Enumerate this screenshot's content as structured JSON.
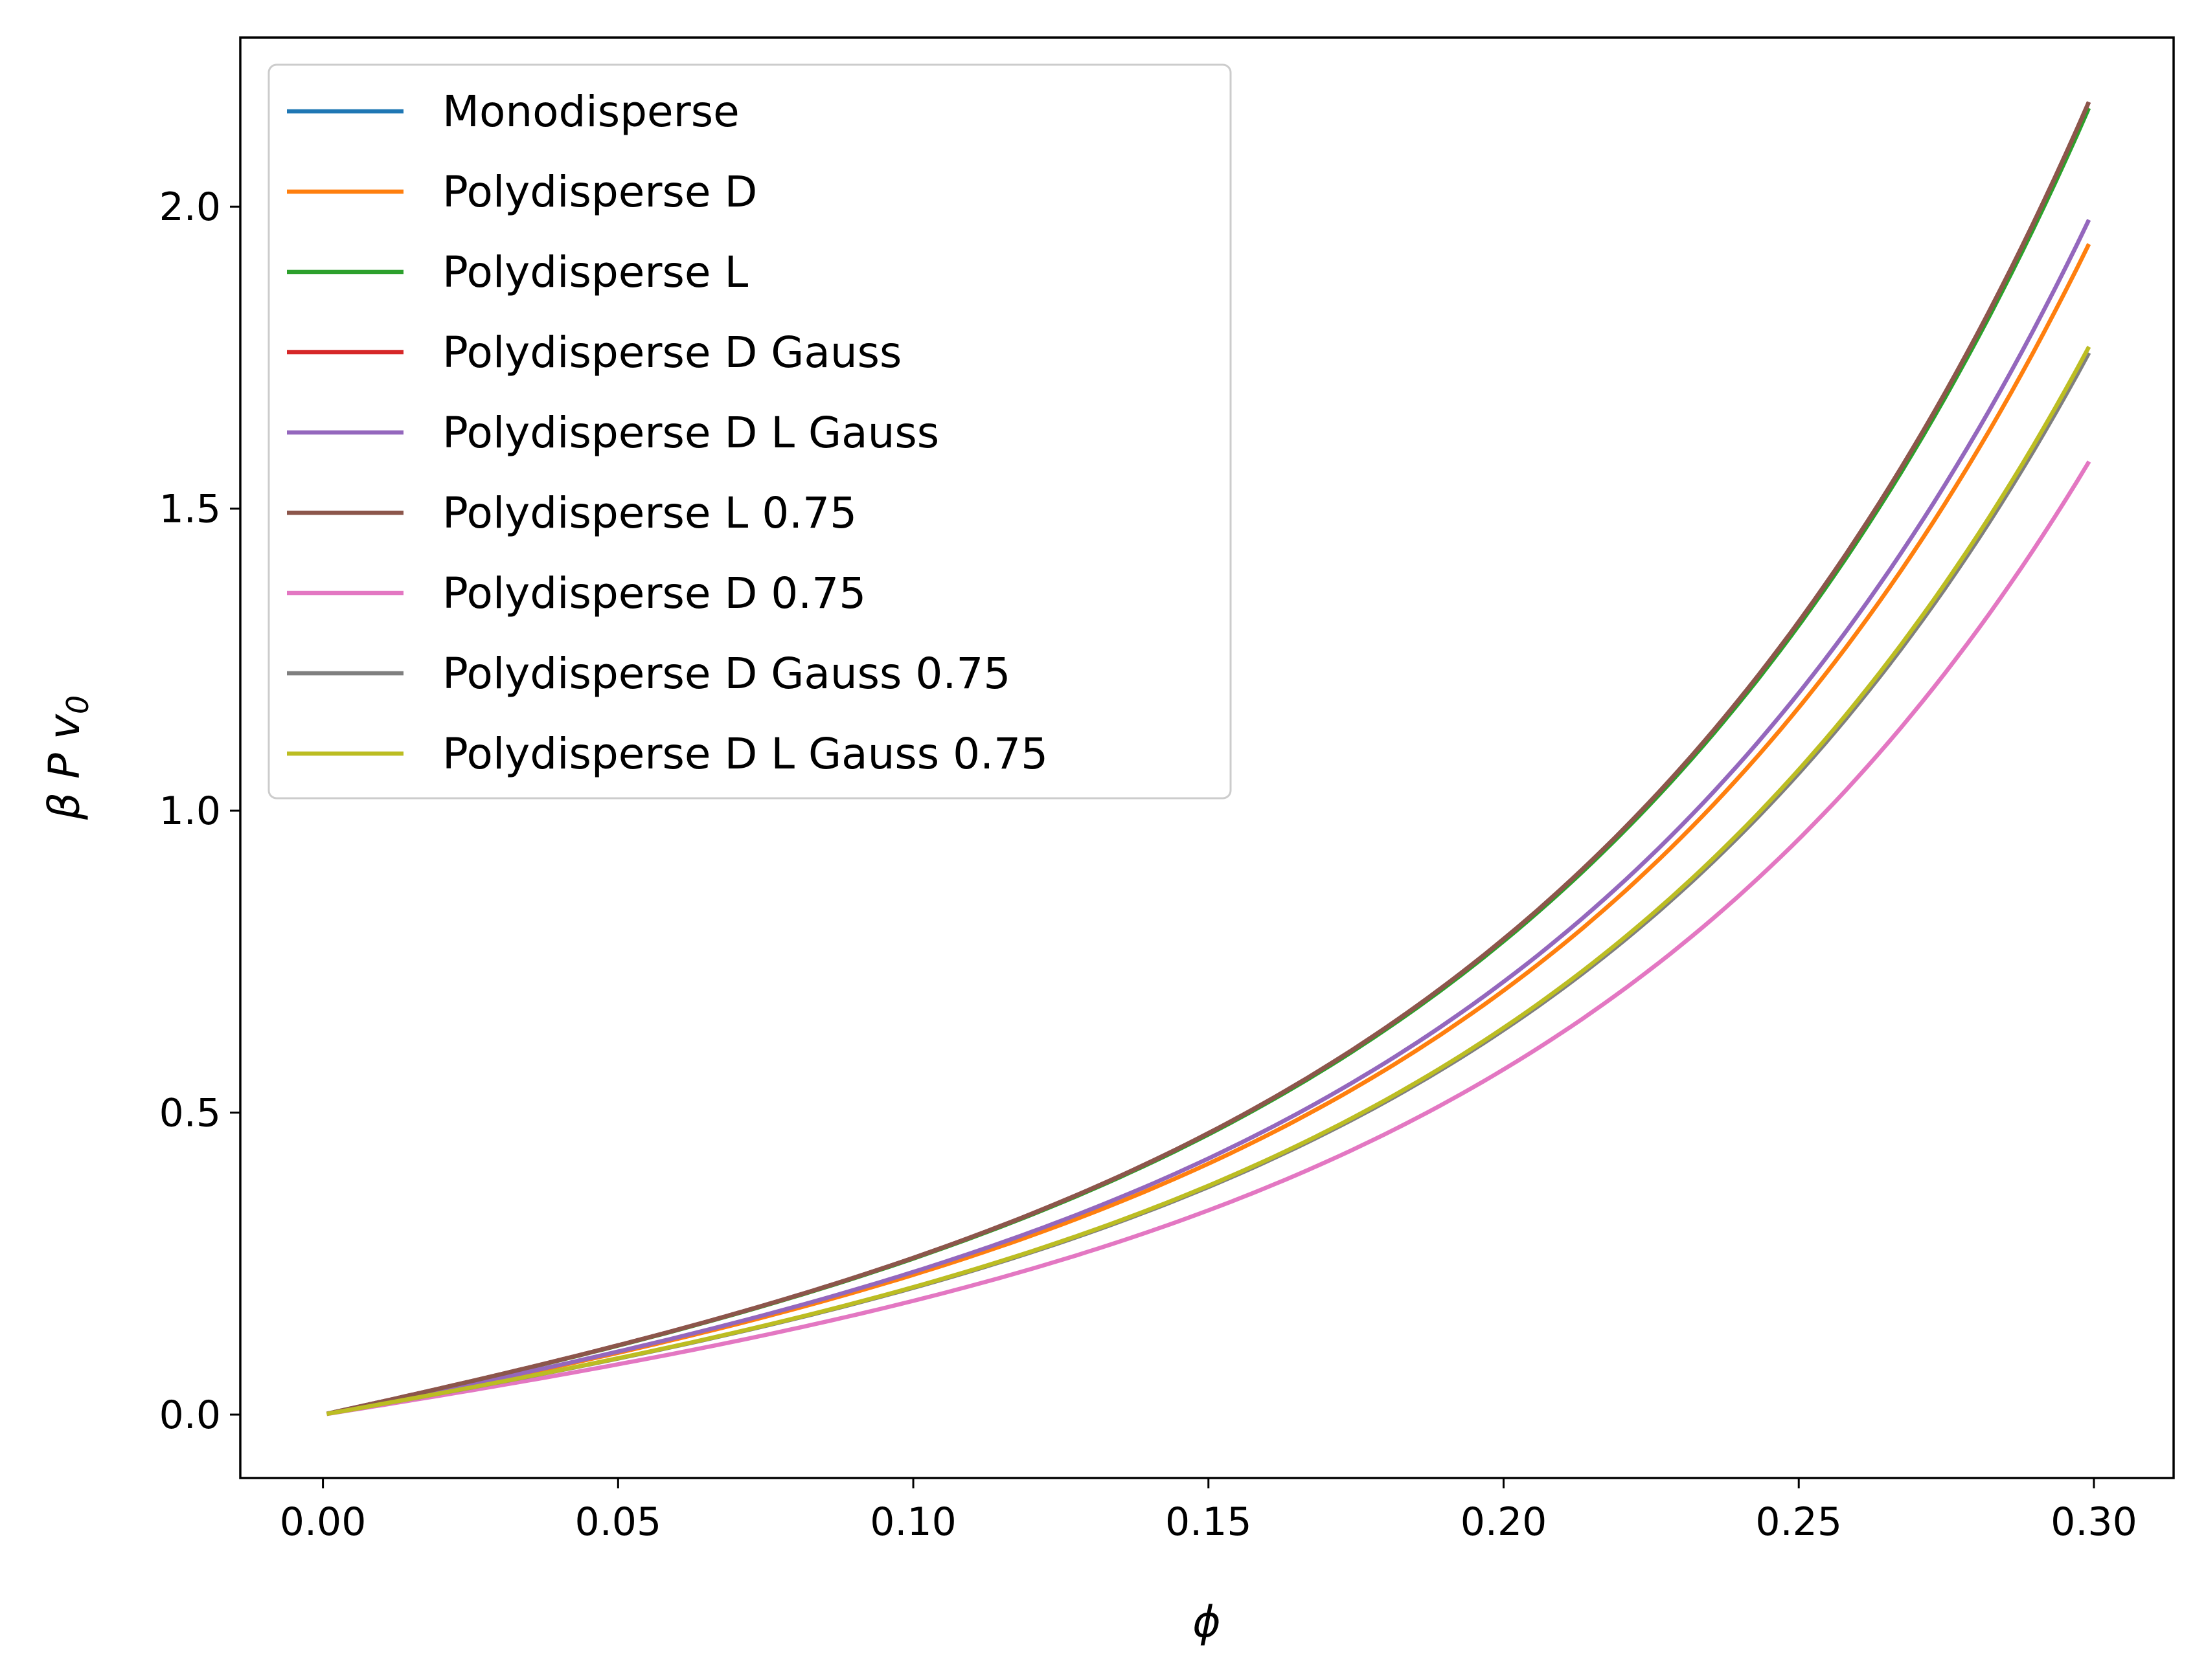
{
  "chart_data": {
    "type": "line",
    "title": "",
    "xlabel": "ϕ",
    "ylabel": "β P v",
    "ylabel_subscript": "0",
    "xlim": [
      -0.014,
      0.3135
    ],
    "ylim": [
      -0.105,
      2.28
    ],
    "xticks": [
      0.0,
      0.05,
      0.1,
      0.15,
      0.2,
      0.25,
      0.3
    ],
    "xtick_labels": [
      "0.00",
      "0.05",
      "0.10",
      "0.15",
      "0.20",
      "0.25",
      "0.30"
    ],
    "yticks": [
      0.0,
      0.5,
      1.0,
      1.5,
      2.0
    ],
    "ytick_labels": [
      "0.0",
      "0.5",
      "1.0",
      "1.5",
      "2.0"
    ],
    "grid": false,
    "legend_position": "upper-left",
    "x_range": [
      0.001,
      0.299
    ],
    "series": [
      {
        "name": "Monodisperse",
        "color": "#1f77b4",
        "end_value": 2.17
      },
      {
        "name": "Polydisperse D",
        "color": "#ff7f0e",
        "end_value": 1.935
      },
      {
        "name": "Polydisperse L",
        "color": "#2ca02c",
        "end_value": 2.16
      },
      {
        "name": "Polydisperse D Gauss",
        "color": "#d62728",
        "end_value": 2.17
      },
      {
        "name": "Polydisperse D L Gauss",
        "color": "#9467bd",
        "end_value": 1.975
      },
      {
        "name": "Polydisperse L 0.75",
        "color": "#8c564b",
        "end_value": 2.17
      },
      {
        "name": "Polydisperse D 0.75",
        "color": "#e377c2",
        "end_value": 1.575
      },
      {
        "name": "Polydisperse D Gauss 0.75",
        "color": "#7f7f7f",
        "end_value": 1.755
      },
      {
        "name": "Polydisperse D L Gauss 0.75",
        "color": "#bcbd22",
        "end_value": 1.765
      }
    ]
  }
}
